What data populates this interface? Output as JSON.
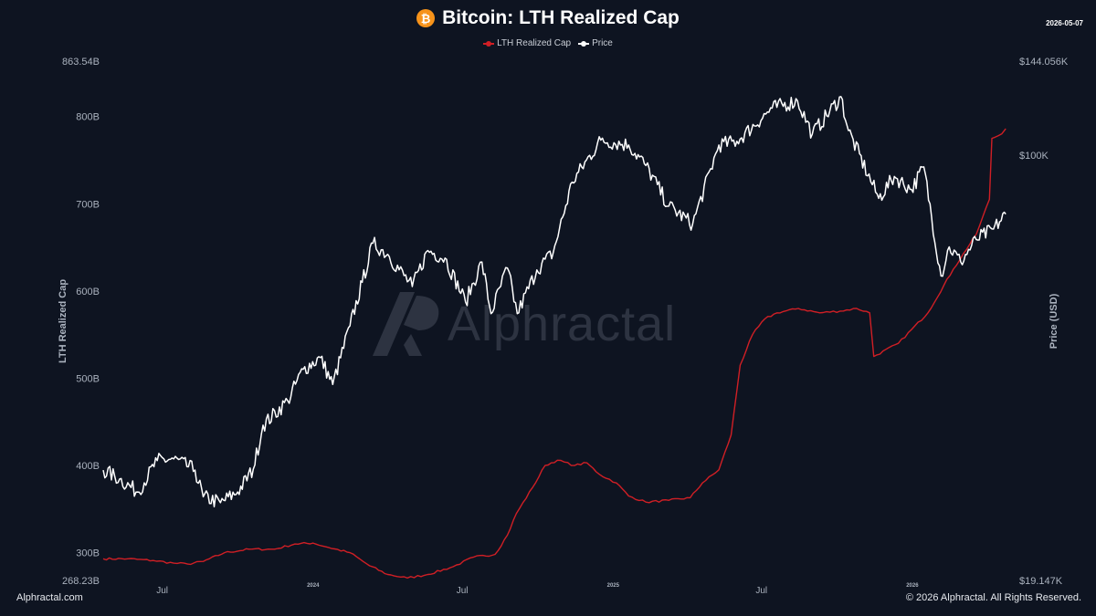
{
  "header": {
    "coin_symbol": "₿",
    "title": "Bitcoin: LTH Realized Cap",
    "date": "2026-05-07"
  },
  "legend": [
    {
      "label": "LTH Realized Cap",
      "color": "#d01f25"
    },
    {
      "label": "Price",
      "color": "#ffffff"
    }
  ],
  "watermark": {
    "text": "Alphractal"
  },
  "footer": {
    "left": "Alphractal.com",
    "right": "© 2026 Alphractal. All Rights Reserved."
  },
  "chart_data": {
    "type": "line",
    "title": "Bitcoin: LTH Realized Cap",
    "y_left": {
      "label": "LTH Realized Cap",
      "range": [
        268.23,
        863.54
      ],
      "unit": "B",
      "ticks": [
        {
          "value": 863.54,
          "label": "863.54B"
        },
        {
          "value": 800,
          "label": "800B"
        },
        {
          "value": 700,
          "label": "700B"
        },
        {
          "value": 600,
          "label": "600B"
        },
        {
          "value": 500,
          "label": "500B"
        },
        {
          "value": 400,
          "label": "400B"
        },
        {
          "value": 300,
          "label": "300B"
        },
        {
          "value": 268.23,
          "label": "268.23B"
        }
      ]
    },
    "y_right": {
      "label": "Price (USD)",
      "scale": "log",
      "range": [
        19147,
        144056
      ],
      "ticks": [
        {
          "value": 144056,
          "label": "$144.056K"
        },
        {
          "value": 100000,
          "label": "$100K"
        },
        {
          "value": 19147,
          "label": "$19.147K"
        }
      ]
    },
    "x": {
      "range": [
        "2023-04-20",
        "2026-05-07"
      ],
      "ticks": [
        {
          "date": "2023-07-01",
          "label": "Jul",
          "style": "normal"
        },
        {
          "date": "2024-01-01",
          "label": "2024",
          "style": "small"
        },
        {
          "date": "2024-07-01",
          "label": "Jul",
          "style": "normal"
        },
        {
          "date": "2025-01-01",
          "label": "2025",
          "style": "small"
        },
        {
          "date": "2025-07-01",
          "label": "Jul",
          "style": "normal"
        },
        {
          "date": "2026-01-01",
          "label": "2026",
          "style": "small"
        }
      ]
    },
    "grid": false,
    "legend_position": "top-center",
    "series": [
      {
        "name": "LTH Realized Cap",
        "color": "#d01f25",
        "axis": "left",
        "points": [
          [
            "2023-04-20",
            293
          ],
          [
            "2023-05-20",
            293
          ],
          [
            "2023-06-20",
            291
          ],
          [
            "2023-07-15",
            288
          ],
          [
            "2023-08-01",
            287
          ],
          [
            "2023-08-20",
            290
          ],
          [
            "2023-09-15",
            300
          ],
          [
            "2023-10-15",
            304
          ],
          [
            "2023-11-15",
            304
          ],
          [
            "2023-12-10",
            310
          ],
          [
            "2024-01-01",
            311
          ],
          [
            "2024-01-20",
            306
          ],
          [
            "2024-02-15",
            300
          ],
          [
            "2024-03-10",
            285
          ],
          [
            "2024-04-01",
            275
          ],
          [
            "2024-04-25",
            271
          ],
          [
            "2024-05-20",
            275
          ],
          [
            "2024-06-20",
            284
          ],
          [
            "2024-07-15",
            295
          ],
          [
            "2024-08-10",
            298
          ],
          [
            "2024-08-25",
            320
          ],
          [
            "2024-09-05",
            345
          ],
          [
            "2024-09-25",
            375
          ],
          [
            "2024-10-10",
            400
          ],
          [
            "2024-10-25",
            406
          ],
          [
            "2024-11-15",
            400
          ],
          [
            "2024-11-30",
            403
          ],
          [
            "2024-12-15",
            390
          ],
          [
            "2025-01-05",
            380
          ],
          [
            "2025-01-20",
            365
          ],
          [
            "2025-02-10",
            358
          ],
          [
            "2025-03-10",
            360
          ],
          [
            "2025-04-05",
            363
          ],
          [
            "2025-04-20",
            380
          ],
          [
            "2025-05-10",
            395
          ],
          [
            "2025-05-25",
            435
          ],
          [
            "2025-06-05",
            515
          ],
          [
            "2025-06-20",
            550
          ],
          [
            "2025-07-05",
            568
          ],
          [
            "2025-07-20",
            575
          ],
          [
            "2025-08-15",
            580
          ],
          [
            "2025-09-10",
            575
          ],
          [
            "2025-10-05",
            577
          ],
          [
            "2025-10-25",
            580
          ],
          [
            "2025-11-10",
            575
          ],
          [
            "2025-11-15",
            525
          ],
          [
            "2025-12-15",
            540
          ],
          [
            "2026-01-20",
            575
          ],
          [
            "2026-02-20",
            625
          ],
          [
            "2026-03-20",
            665
          ],
          [
            "2026-04-05",
            705
          ],
          [
            "2026-04-08",
            775
          ],
          [
            "2026-04-20",
            780
          ],
          [
            "2026-04-25",
            786
          ]
        ]
      },
      {
        "name": "Price",
        "color": "#ffffff",
        "axis": "right",
        "points": [
          [
            "2023-04-20",
            29400
          ],
          [
            "2023-05-10",
            28400
          ],
          [
            "2023-06-01",
            27000
          ],
          [
            "2023-06-25",
            30500
          ],
          [
            "2023-07-15",
            30700
          ],
          [
            "2023-08-10",
            29400
          ],
          [
            "2023-08-20",
            26500
          ],
          [
            "2023-09-10",
            25900
          ],
          [
            "2023-10-01",
            27000
          ],
          [
            "2023-10-20",
            29500
          ],
          [
            "2023-11-01",
            35000
          ],
          [
            "2023-12-01",
            38500
          ],
          [
            "2023-12-20",
            43500
          ],
          [
            "2024-01-10",
            45500
          ],
          [
            "2024-01-25",
            41000
          ],
          [
            "2024-02-15",
            51500
          ],
          [
            "2024-03-01",
            61000
          ],
          [
            "2024-03-14",
            71000
          ],
          [
            "2024-04-01",
            68000
          ],
          [
            "2024-05-01",
            60000
          ],
          [
            "2024-05-20",
            69000
          ],
          [
            "2024-06-10",
            67000
          ],
          [
            "2024-07-05",
            56500
          ],
          [
            "2024-07-25",
            66000
          ],
          [
            "2024-08-05",
            54000
          ],
          [
            "2024-08-25",
            64500
          ],
          [
            "2024-09-06",
            54000
          ],
          [
            "2024-09-30",
            64000
          ],
          [
            "2024-10-20",
            68500
          ],
          [
            "2024-11-12",
            90000
          ],
          [
            "2024-12-17",
            106000
          ],
          [
            "2025-01-20",
            104000
          ],
          [
            "2025-02-10",
            96000
          ],
          [
            "2025-03-10",
            82000
          ],
          [
            "2025-04-08",
            76500
          ],
          [
            "2025-05-10",
            104000
          ],
          [
            "2025-06-01",
            105500
          ],
          [
            "2025-07-14",
            120000
          ],
          [
            "2025-08-14",
            123500
          ],
          [
            "2025-09-01",
            108500
          ],
          [
            "2025-10-06",
            125500
          ],
          [
            "2025-10-15",
            110000
          ],
          [
            "2025-11-21",
            84500
          ],
          [
            "2025-12-10",
            92000
          ],
          [
            "2025-12-31",
            87500
          ],
          [
            "2026-01-15",
            95500
          ],
          [
            "2026-02-05",
            62500
          ],
          [
            "2026-02-15",
            70000
          ],
          [
            "2026-03-01",
            66000
          ],
          [
            "2026-03-20",
            72000
          ],
          [
            "2026-04-10",
            75000
          ],
          [
            "2026-04-25",
            79500
          ]
        ]
      }
    ]
  }
}
